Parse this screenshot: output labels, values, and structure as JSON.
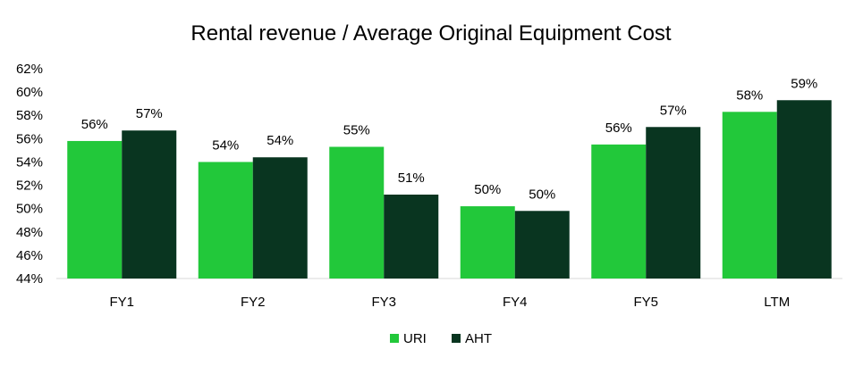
{
  "chart_data": {
    "type": "bar",
    "title": "Rental revenue / Average Original Equipment Cost",
    "xlabel": "",
    "ylabel": "",
    "categories": [
      "FY1",
      "FY2",
      "FY3",
      "FY4",
      "FY5",
      "LTM"
    ],
    "series": [
      {
        "name": "URI",
        "color": "#22c83a",
        "values": [
          55.8,
          54.0,
          55.3,
          50.2,
          55.5,
          58.3
        ],
        "labels": [
          "56%",
          "54%",
          "55%",
          "50%",
          "56%",
          "58%"
        ]
      },
      {
        "name": "AHT",
        "color": "#093520",
        "values": [
          56.7,
          54.4,
          51.2,
          49.8,
          57.0,
          59.3
        ],
        "labels": [
          "57%",
          "54%",
          "51%",
          "50%",
          "57%",
          "59%"
        ]
      }
    ],
    "ylim": [
      44,
      62
    ],
    "yticks": [
      44,
      46,
      48,
      50,
      52,
      54,
      56,
      58,
      60,
      62
    ],
    "ytick_labels": [
      "44%",
      "46%",
      "48%",
      "50%",
      "52%",
      "54%",
      "56%",
      "58%",
      "60%",
      "62%"
    ],
    "grid": false,
    "legend_position": "bottom"
  }
}
